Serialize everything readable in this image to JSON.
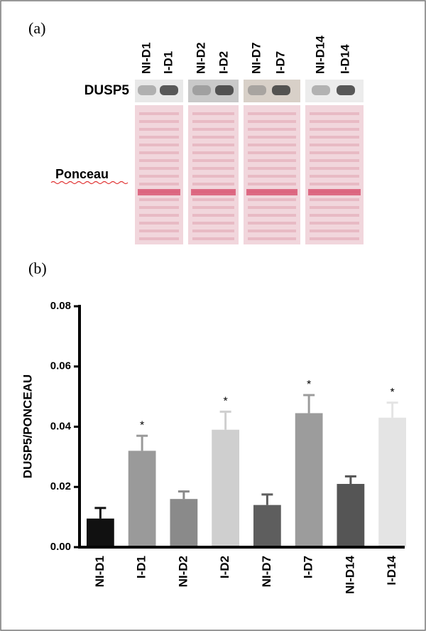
{
  "panel_a": {
    "label": "(a)",
    "lanes": [
      "NI-D1",
      "I-D1",
      "NI-D2",
      "I-D2",
      "NI-D7",
      "I-D7",
      "NI-D14",
      "I-D14"
    ],
    "blot_labels": [
      "DUSP5",
      "Ponceau"
    ]
  },
  "chart_data": {
    "type": "bar",
    "panel_label": "(b)",
    "y_label": "DUSP5/PONCEAU",
    "categories": [
      "NI-D1",
      "I-D1",
      "NI-D2",
      "I-D2",
      "NI-D7",
      "I-D7",
      "NI-D14",
      "I-D14"
    ],
    "values": [
      0.0095,
      0.032,
      0.016,
      0.039,
      0.014,
      0.0445,
      0.021,
      0.043
    ],
    "errors": [
      0.0035,
      0.005,
      0.0025,
      0.006,
      0.0035,
      0.006,
      0.0025,
      0.005
    ],
    "colors": [
      "#111111",
      "#9a9a9a",
      "#8a8a8a",
      "#cfcfcf",
      "#5e5e5e",
      "#9c9c9c",
      "#555555",
      "#e4e4e4"
    ],
    "annotations": [
      {
        "category": "I-D1",
        "text": "*"
      },
      {
        "category": "I-D2",
        "text": "*"
      },
      {
        "category": "I-D7",
        "text": "*"
      },
      {
        "category": "I-D14",
        "text": "*"
      }
    ],
    "ylim": [
      0,
      0.08
    ],
    "yticks": [
      {
        "value": 0,
        "label": "0.00"
      },
      {
        "value": 0.02,
        "label": "0.02"
      },
      {
        "value": 0.04,
        "label": "0.04"
      },
      {
        "value": 0.06,
        "label": "0.06"
      },
      {
        "value": 0.08,
        "label": "0.08"
      }
    ],
    "grid": false
  }
}
